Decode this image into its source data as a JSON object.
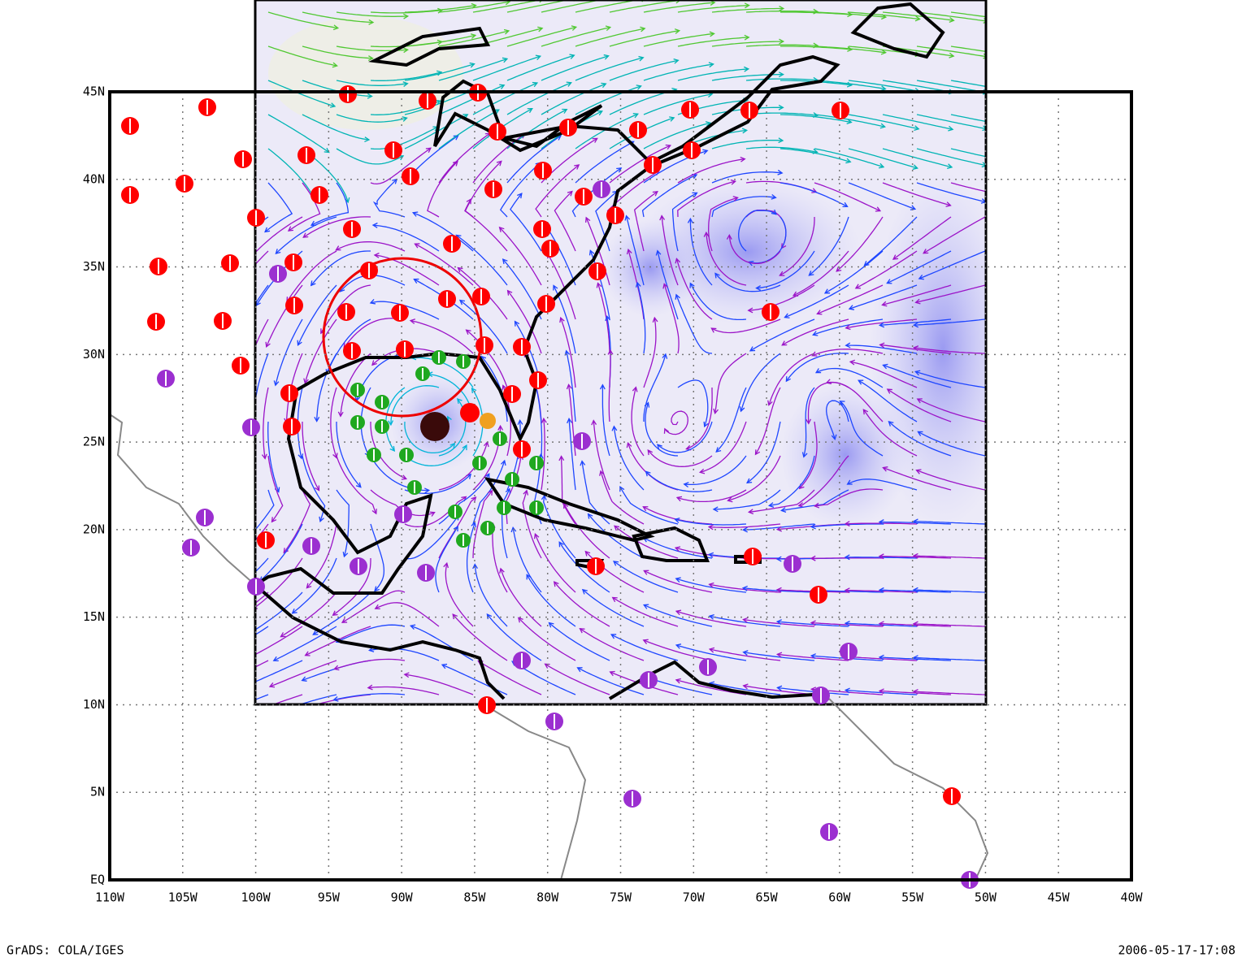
{
  "map": {
    "y_labels": [
      "45N",
      "40N",
      "35N",
      "30N",
      "25N",
      "20N",
      "15N",
      "10N",
      "5N",
      "EQ"
    ],
    "x_labels": [
      "110W",
      "105W",
      "100W",
      "95W",
      "90W",
      "85W",
      "80W",
      "75W",
      "70W",
      "65W",
      "60W",
      "55W",
      "50W",
      "45W",
      "40W"
    ]
  },
  "footer": {
    "left": "GrADS: COLA/IGES",
    "right": "2006-05-17-17:08"
  }
}
